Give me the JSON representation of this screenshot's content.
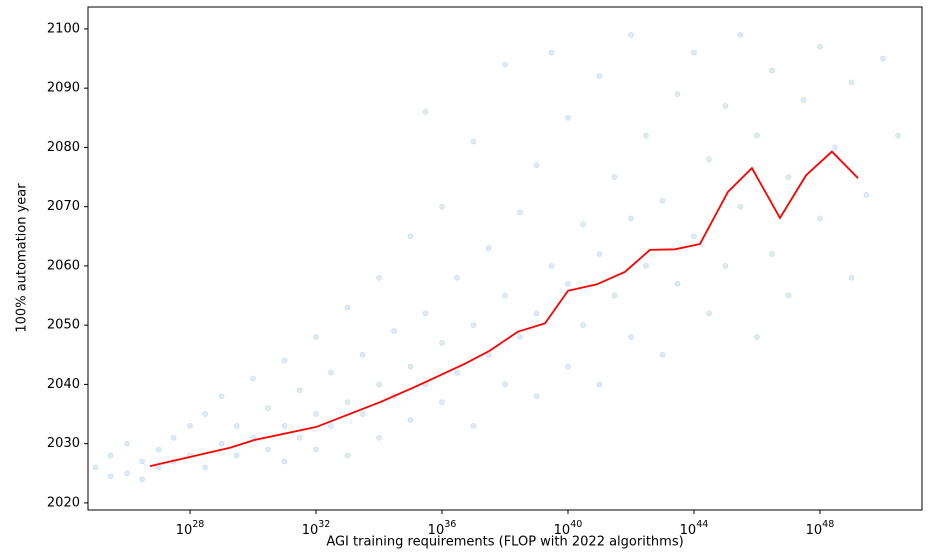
{
  "chart_data": {
    "type": "scatter",
    "xlabel": "AGI training requirements (FLOP with 2022 algorithms)",
    "ylabel": "100% automation year",
    "xscale": "log",
    "xlim": [
      5.75e+24,
      1.74e+51
    ],
    "xticks": [
      {
        "value": 1e+28,
        "label": "10^28"
      },
      {
        "value": 1e+32,
        "label": "10^32"
      },
      {
        "value": 1e+36,
        "label": "10^36"
      },
      {
        "value": 1e+40,
        "label": "10^40"
      },
      {
        "value": 1e+44,
        "label": "10^44"
      },
      {
        "value": 1e+48,
        "label": "10^48"
      }
    ],
    "ylim": [
      2018.8,
      2103.7
    ],
    "yticks": [
      2020,
      2030,
      2040,
      2050,
      2060,
      2070,
      2080,
      2090,
      2100
    ],
    "series": [
      {
        "type": "scatter",
        "color": "#1f77b4",
        "opacity": 0.15,
        "x": [
          1e+25,
          3e+25,
          3e+25,
          1e+26,
          1e+26,
          3e+26,
          3e+26,
          1e+27,
          1e+27,
          3e+27,
          3e+27,
          1e+28,
          1e+28,
          3e+28,
          3e+28,
          1e+29,
          1e+29,
          3e+29,
          3e+29,
          1e+30,
          1e+30,
          3e+30,
          3e+30,
          1e+31,
          1e+31,
          1e+31,
          3e+31,
          3e+31,
          1e+32,
          1e+32,
          1e+32,
          3e+32,
          3e+32,
          1e+33,
          1e+33,
          1e+33,
          3e+33,
          3e+33,
          1e+34,
          1e+34,
          1e+34,
          3e+34,
          3e+34,
          1e+35,
          1e+35,
          1e+35,
          3e+35,
          3e+35,
          3e+35,
          1e+36,
          1e+36,
          1e+36,
          3e+36,
          3e+36,
          1e+37,
          1e+37,
          1e+37,
          3e+37,
          3e+37,
          1e+38,
          1e+38,
          1e+38,
          3e+38,
          3e+38,
          1e+39,
          1e+39,
          1e+39,
          3e+39,
          3e+39,
          1e+40,
          1e+40,
          1e+40,
          3e+40,
          3e+40,
          1e+41,
          1e+41,
          1e+41,
          3e+41,
          3e+41,
          1e+42,
          1e+42,
          1e+42,
          3e+42,
          3e+42,
          1e+43,
          1e+43,
          3e+43,
          3e+43,
          1e+44,
          1e+44,
          3e+44,
          3e+44,
          1e+45,
          1e+45,
          3e+45,
          3e+45,
          1e+46,
          1e+46,
          3e+46,
          3e+46,
          1e+47,
          1e+47,
          3e+47,
          1e+48,
          1e+48,
          3e+48,
          1e+49,
          1e+49,
          3e+49,
          1e+50,
          3e+50
        ],
        "values": [
          2026,
          2024.5,
          2028,
          2025,
          2030,
          2027,
          2024,
          2029,
          2026,
          2031,
          2027,
          2028,
          2033,
          2035,
          2026,
          2030,
          2038,
          2028,
          2033,
          2041,
          2031,
          2029,
          2036,
          2044,
          2033,
          2027,
          2031,
          2039,
          2035,
          2029,
          2048,
          2033,
          2042,
          2037,
          2028,
          2053,
          2035,
          2045,
          2040,
          2031,
          2058,
          2038,
          2049,
          2034,
          2043,
          2065,
          2040,
          2052,
          2086,
          2037,
          2047,
          2070,
          2042,
          2058,
          2033,
          2050,
          2081,
          2045,
          2063,
          2040,
          2055,
          2094,
          2048,
          2069,
          2038,
          2052,
          2077,
          2060,
          2096,
          2043,
          2057,
          2085,
          2050,
          2067,
          2062,
          2092,
          2040,
          2055,
          2075,
          2048,
          2068,
          2099,
          2060,
          2082,
          2045,
          2071,
          2057,
          2089,
          2065,
          2096,
          2052,
          2078,
          2060,
          2087,
          2070,
          2099,
          2048,
          2082,
          2062,
          2093,
          2075,
          2055,
          2088,
          2068,
          2097,
          2080,
          2058,
          2091,
          2072,
          2095,
          2082
        ]
      },
      {
        "type": "line",
        "color": "#ff0000",
        "x": [
          5.37e+26,
          1.86e+29,
          1.07e+30,
          1e+32,
          1.07e+34,
          1.29e+35,
          5.37e+36,
          3.31e+37,
          2.57e+38,
          1.86e+39,
          1e+40,
          8.32e+40,
          6.46e+41,
          3.98e+42,
          2.51e+43,
          1.55e+44,
          1.2e+45,
          6.92e+45,
          5.37e+46,
          3.63e+47,
          2.4e+48,
          1.62e+49
        ],
        "values": [
          2026.2,
          2029.3,
          2030.6,
          2032.8,
          2037.0,
          2039.5,
          2043.5,
          2045.7,
          2048.9,
          2050.3,
          2055.8,
          2056.9,
          2059.0,
          2062.7,
          2062.8,
          2063.7,
          2072.5,
          2076.5,
          2068.1,
          2075.3,
          2079.3,
          2074.8
        ]
      }
    ]
  }
}
